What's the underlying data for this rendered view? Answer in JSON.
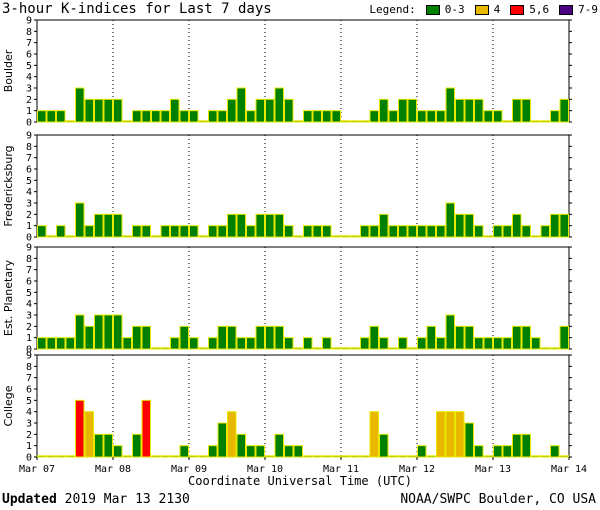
{
  "title": "3-hour K-indices for Last 7 days",
  "legend": {
    "label": "Legend:",
    "items": [
      {
        "label": "0-3",
        "color": "#008000"
      },
      {
        "label": "4",
        "color": "#e8b800"
      },
      {
        "label": "5,6",
        "color": "#ff0000"
      },
      {
        "label": "7-9",
        "color": "#4b0082"
      }
    ]
  },
  "chart_data": {
    "type": "bar",
    "x_tick_labels": [
      "Mar 07",
      "Mar 08",
      "Mar 09",
      "Mar 10",
      "Mar 11",
      "Mar 12",
      "Mar 13",
      "Mar 14"
    ],
    "xlabel": "Coordinate Universal Time (UTC)",
    "ylim": [
      0,
      9
    ],
    "y_tick_labels": [
      "0",
      "1",
      "2",
      "3",
      "4",
      "5",
      "6",
      "7",
      "8",
      "9"
    ],
    "bins_per_day": 8,
    "panels": [
      {
        "name": "Boulder",
        "values": [
          1,
          1,
          1,
          0,
          3,
          2,
          2,
          2,
          2,
          0,
          1,
          1,
          1,
          1,
          2,
          1,
          1,
          0,
          1,
          1,
          2,
          3,
          1,
          2,
          2,
          3,
          2,
          0,
          1,
          1,
          1,
          1,
          0,
          0,
          0,
          1,
          2,
          1,
          2,
          2,
          1,
          1,
          1,
          3,
          2,
          2,
          2,
          1,
          1,
          0,
          2,
          2,
          0,
          0,
          1,
          2
        ]
      },
      {
        "name": "Fredericksburg",
        "values": [
          1,
          0,
          1,
          0,
          3,
          1,
          2,
          2,
          2,
          0,
          1,
          1,
          0,
          1,
          1,
          1,
          1,
          0,
          1,
          1,
          2,
          2,
          1,
          2,
          2,
          2,
          1,
          0,
          1,
          1,
          1,
          0,
          0,
          0,
          1,
          1,
          2,
          1,
          1,
          1,
          1,
          1,
          1,
          3,
          2,
          2,
          1,
          0,
          1,
          1,
          2,
          1,
          0,
          1,
          2,
          2
        ]
      },
      {
        "name": "Est. Planetary",
        "values": [
          1,
          1,
          1,
          1,
          3,
          2,
          3,
          3,
          3,
          1,
          2,
          2,
          0,
          0,
          1,
          2,
          1,
          0,
          1,
          2,
          2,
          1,
          1,
          2,
          2,
          2,
          1,
          0,
          1,
          0,
          1,
          0,
          0,
          0,
          1,
          2,
          1,
          0,
          1,
          0,
          1,
          2,
          1,
          3,
          2,
          2,
          1,
          1,
          1,
          1,
          2,
          2,
          1,
          0,
          0,
          2
        ]
      },
      {
        "name": "College",
        "values": [
          0,
          0,
          0,
          0,
          5,
          4,
          2,
          2,
          1,
          0,
          2,
          5,
          0,
          0,
          0,
          1,
          0,
          0,
          1,
          3,
          4,
          2,
          1,
          1,
          0,
          2,
          1,
          1,
          0,
          0,
          0,
          0,
          0,
          0,
          0,
          4,
          2,
          0,
          0,
          0,
          1,
          0,
          4,
          4,
          4,
          3,
          1,
          0,
          1,
          1,
          2,
          2,
          0,
          0,
          1,
          0
        ]
      }
    ]
  },
  "footer": {
    "updated_label": "Updated",
    "updated_value": "2019 Mar 13 2130",
    "source": "NOAA/SWPC Boulder, CO USA"
  }
}
